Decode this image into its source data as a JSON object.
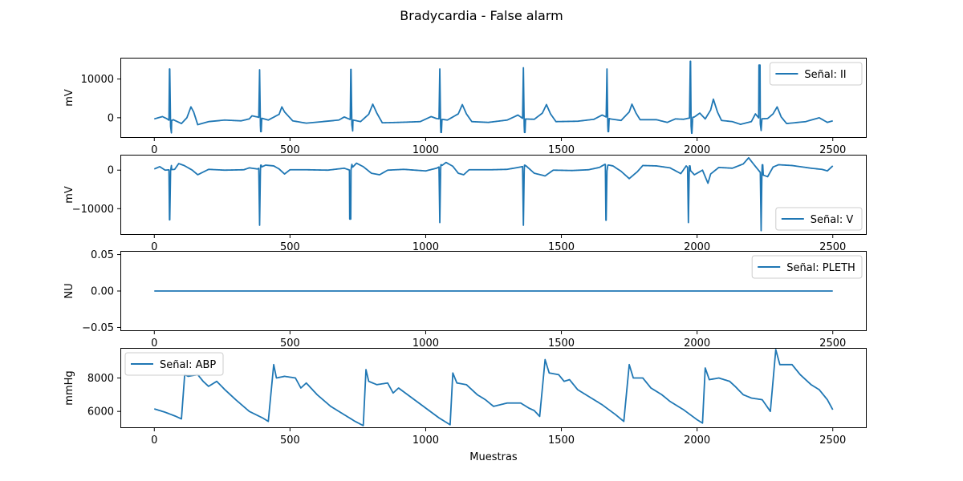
{
  "chart_data": {
    "type": "line",
    "title": "Bradycardia - False alarm",
    "xlabel": "Muestras",
    "x_ticks": [
      0,
      500,
      1000,
      1500,
      2000,
      2500
    ],
    "x_range": [
      -125,
      2625
    ],
    "series_color": "#1f77b4",
    "panels": [
      {
        "legend": "Señal: II",
        "ylabel": "mV",
        "legend_loc": "upper right",
        "y_range": [
          -5200,
          15500
        ],
        "y_ticks": [
          0,
          10000
        ],
        "y_tick_labels": [
          "0",
          "10000"
        ],
        "baseline": [
          [
            0,
            -300
          ],
          [
            30,
            300
          ],
          [
            45,
            -200
          ],
          [
            60,
            -900
          ],
          [
            70,
            -500
          ],
          [
            100,
            -1500
          ],
          [
            120,
            0
          ],
          [
            135,
            2800
          ],
          [
            145,
            1500
          ],
          [
            160,
            -1800
          ],
          [
            200,
            -1000
          ],
          [
            260,
            -600
          ],
          [
            320,
            -800
          ],
          [
            350,
            -300
          ],
          [
            360,
            500
          ],
          [
            380,
            200
          ],
          [
            420,
            -600
          ],
          [
            460,
            900
          ],
          [
            470,
            2800
          ],
          [
            480,
            1500
          ],
          [
            510,
            -800
          ],
          [
            560,
            -1400
          ],
          [
            620,
            -1000
          ],
          [
            680,
            -600
          ],
          [
            700,
            200
          ],
          [
            720,
            -400
          ],
          [
            760,
            -1000
          ],
          [
            790,
            900
          ],
          [
            805,
            3500
          ],
          [
            820,
            1200
          ],
          [
            840,
            -1300
          ],
          [
            900,
            -1200
          ],
          [
            980,
            -1000
          ],
          [
            1020,
            300
          ],
          [
            1040,
            -200
          ],
          [
            1080,
            -600
          ],
          [
            1120,
            1000
          ],
          [
            1135,
            3400
          ],
          [
            1150,
            1000
          ],
          [
            1170,
            -1000
          ],
          [
            1230,
            -1200
          ],
          [
            1300,
            -600
          ],
          [
            1340,
            700
          ],
          [
            1360,
            -300
          ],
          [
            1400,
            -400
          ],
          [
            1430,
            1200
          ],
          [
            1445,
            3400
          ],
          [
            1460,
            1000
          ],
          [
            1480,
            -1000
          ],
          [
            1560,
            -900
          ],
          [
            1620,
            -400
          ],
          [
            1650,
            700
          ],
          [
            1680,
            -300
          ],
          [
            1720,
            -700
          ],
          [
            1750,
            1500
          ],
          [
            1760,
            3500
          ],
          [
            1775,
            1200
          ],
          [
            1790,
            -500
          ],
          [
            1850,
            -500
          ],
          [
            1890,
            -1200
          ],
          [
            1920,
            -300
          ],
          [
            1950,
            -400
          ],
          [
            1990,
            200
          ],
          [
            2010,
            1200
          ],
          [
            2030,
            -300
          ],
          [
            2050,
            2000
          ],
          [
            2060,
            4800
          ],
          [
            2075,
            1500
          ],
          [
            2090,
            -700
          ],
          [
            2130,
            -1000
          ],
          [
            2160,
            -1700
          ],
          [
            2200,
            -1000
          ],
          [
            2215,
            1000
          ],
          [
            2230,
            -300
          ],
          [
            2260,
            -200
          ],
          [
            2280,
            1000
          ],
          [
            2295,
            2800
          ],
          [
            2310,
            200
          ],
          [
            2330,
            -1500
          ],
          [
            2400,
            -1000
          ],
          [
            2450,
            0
          ],
          [
            2480,
            -1200
          ],
          [
            2500,
            -800
          ]
        ],
        "spikes": [
          [
            57,
            12600,
            -3900
          ],
          [
            388,
            12400,
            -3600
          ],
          [
            725,
            12500,
            -3400
          ],
          [
            1052,
            12600,
            -3800
          ],
          [
            1360,
            12900,
            -3800
          ],
          [
            1668,
            12600,
            -3600
          ],
          [
            1975,
            14600,
            -4000
          ],
          [
            2230,
            13600,
            -3300
          ]
        ]
      },
      {
        "legend": "Señal: V",
        "ylabel": "mV",
        "legend_loc": "lower right",
        "y_range": [
          -16800,
          4000
        ],
        "y_ticks": [
          0,
          -10000
        ],
        "y_tick_labels": [
          "0",
          "−10000"
        ],
        "baseline": [
          [
            0,
            300
          ],
          [
            20,
            900
          ],
          [
            40,
            0
          ],
          [
            75,
            200
          ],
          [
            90,
            1700
          ],
          [
            110,
            1200
          ],
          [
            140,
            0
          ],
          [
            160,
            -1200
          ],
          [
            200,
            200
          ],
          [
            260,
            0
          ],
          [
            330,
            100
          ],
          [
            350,
            600
          ],
          [
            380,
            300
          ],
          [
            410,
            1300
          ],
          [
            440,
            1100
          ],
          [
            460,
            300
          ],
          [
            480,
            -1000
          ],
          [
            500,
            100
          ],
          [
            560,
            100
          ],
          [
            640,
            0
          ],
          [
            700,
            500
          ],
          [
            720,
            0
          ],
          [
            745,
            1800
          ],
          [
            770,
            900
          ],
          [
            800,
            -800
          ],
          [
            830,
            -1200
          ],
          [
            860,
            0
          ],
          [
            920,
            200
          ],
          [
            1000,
            -200
          ],
          [
            1040,
            500
          ],
          [
            1060,
            1200
          ],
          [
            1075,
            2000
          ],
          [
            1100,
            1000
          ],
          [
            1120,
            -800
          ],
          [
            1140,
            -1200
          ],
          [
            1160,
            100
          ],
          [
            1240,
            100
          ],
          [
            1300,
            200
          ],
          [
            1340,
            700
          ],
          [
            1370,
            1100
          ],
          [
            1400,
            -800
          ],
          [
            1440,
            -1500
          ],
          [
            1470,
            0
          ],
          [
            1540,
            -100
          ],
          [
            1600,
            100
          ],
          [
            1640,
            700
          ],
          [
            1660,
            1500
          ],
          [
            1690,
            1100
          ],
          [
            1720,
            -300
          ],
          [
            1750,
            -2200
          ],
          [
            1780,
            -400
          ],
          [
            1800,
            1200
          ],
          [
            1850,
            1100
          ],
          [
            1900,
            600
          ],
          [
            1940,
            -900
          ],
          [
            1960,
            1100
          ],
          [
            1990,
            -1200
          ],
          [
            2020,
            0
          ],
          [
            2040,
            -3400
          ],
          [
            2050,
            -1000
          ],
          [
            2080,
            700
          ],
          [
            2130,
            500
          ],
          [
            2170,
            1600
          ],
          [
            2190,
            3200
          ],
          [
            2210,
            1400
          ],
          [
            2240,
            -1200
          ],
          [
            2260,
            -1700
          ],
          [
            2280,
            800
          ],
          [
            2300,
            1400
          ],
          [
            2350,
            1200
          ],
          [
            2420,
            500
          ],
          [
            2460,
            200
          ],
          [
            2480,
            -200
          ],
          [
            2500,
            1100
          ]
        ],
        "spikes": [
          [
            57,
            -12900,
            1200
          ],
          [
            388,
            -14300,
            1300
          ],
          [
            722,
            -12700,
            1500
          ],
          [
            1052,
            -13600,
            1400
          ],
          [
            1360,
            -14300,
            1300
          ],
          [
            1665,
            -13000,
            1200
          ],
          [
            1968,
            -13600,
            1100
          ],
          [
            2236,
            -15700,
            1400
          ]
        ]
      },
      {
        "legend": "Señal: PLETH",
        "ylabel": "NU",
        "legend_loc": "upper right",
        "y_range": [
          -0.055,
          0.055
        ],
        "y_ticks": [
          0.05,
          0.0,
          -0.05
        ],
        "y_tick_labels": [
          "0.05",
          "0.00",
          "−0.05"
        ],
        "baseline": [
          [
            0,
            0
          ],
          [
            2500,
            0
          ]
        ],
        "spikes": []
      },
      {
        "legend": "Señal: ABP",
        "ylabel": "mmHg",
        "legend_loc": "upper left",
        "y_range": [
          5000,
          9800
        ],
        "y_ticks": [
          8000,
          6000
        ],
        "y_tick_labels": [
          "8000",
          "6000"
        ],
        "baseline": [
          [
            0,
            6150
          ],
          [
            40,
            5950
          ],
          [
            80,
            5700
          ],
          [
            100,
            5550
          ],
          [
            112,
            8200
          ],
          [
            125,
            8100
          ],
          [
            160,
            8200
          ],
          [
            180,
            7800
          ],
          [
            200,
            7500
          ],
          [
            230,
            7800
          ],
          [
            260,
            7300
          ],
          [
            300,
            6700
          ],
          [
            350,
            6000
          ],
          [
            400,
            5600
          ],
          [
            420,
            5400
          ],
          [
            440,
            8800
          ],
          [
            450,
            8000
          ],
          [
            480,
            8100
          ],
          [
            520,
            8000
          ],
          [
            540,
            7400
          ],
          [
            560,
            7700
          ],
          [
            600,
            7000
          ],
          [
            650,
            6300
          ],
          [
            700,
            5800
          ],
          [
            740,
            5400
          ],
          [
            770,
            5150
          ],
          [
            780,
            8500
          ],
          [
            790,
            7800
          ],
          [
            820,
            7600
          ],
          [
            860,
            7700
          ],
          [
            880,
            7100
          ],
          [
            900,
            7400
          ],
          [
            950,
            6800
          ],
          [
            1000,
            6200
          ],
          [
            1050,
            5600
          ],
          [
            1090,
            5200
          ],
          [
            1100,
            8300
          ],
          [
            1115,
            7700
          ],
          [
            1150,
            7600
          ],
          [
            1190,
            7000
          ],
          [
            1220,
            6700
          ],
          [
            1250,
            6300
          ],
          [
            1300,
            6500
          ],
          [
            1350,
            6500
          ],
          [
            1380,
            6200
          ],
          [
            1400,
            6050
          ],
          [
            1420,
            5700
          ],
          [
            1440,
            9100
          ],
          [
            1455,
            8300
          ],
          [
            1490,
            8200
          ],
          [
            1510,
            7800
          ],
          [
            1530,
            7900
          ],
          [
            1560,
            7300
          ],
          [
            1600,
            6900
          ],
          [
            1650,
            6400
          ],
          [
            1700,
            5800
          ],
          [
            1730,
            5400
          ],
          [
            1750,
            8800
          ],
          [
            1765,
            8000
          ],
          [
            1800,
            8000
          ],
          [
            1830,
            7400
          ],
          [
            1870,
            7000
          ],
          [
            1900,
            6600
          ],
          [
            1950,
            6100
          ],
          [
            2000,
            5500
          ],
          [
            2020,
            5300
          ],
          [
            2030,
            8600
          ],
          [
            2045,
            7900
          ],
          [
            2080,
            8000
          ],
          [
            2120,
            7800
          ],
          [
            2140,
            7500
          ],
          [
            2170,
            7000
          ],
          [
            2200,
            6800
          ],
          [
            2240,
            6700
          ],
          [
            2270,
            6000
          ],
          [
            2290,
            9700
          ],
          [
            2305,
            8800
          ],
          [
            2350,
            8800
          ],
          [
            2380,
            8200
          ],
          [
            2420,
            7600
          ],
          [
            2450,
            7300
          ],
          [
            2480,
            6700
          ],
          [
            2500,
            6100
          ]
        ],
        "spikes": []
      }
    ]
  }
}
